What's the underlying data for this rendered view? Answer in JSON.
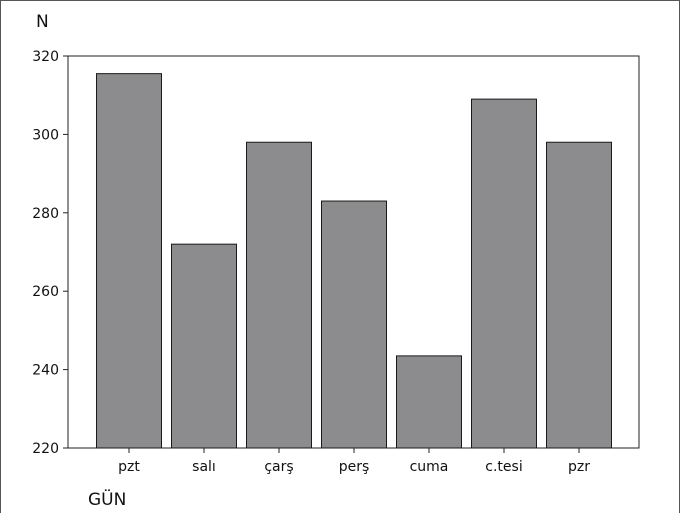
{
  "chart_data": {
    "type": "bar",
    "categories": [
      "pzt",
      "salı",
      "çarş",
      "perş",
      "cuma",
      "c.tesi",
      "pzr"
    ],
    "values": [
      315.5,
      272,
      298,
      283,
      243.5,
      309,
      298
    ],
    "xlabel": "GÜN",
    "ylabel": "N",
    "ylim": [
      220,
      320
    ],
    "yticks": [
      220,
      240,
      260,
      280,
      300,
      320
    ],
    "grid": false,
    "bar_color": "#8c8c8e",
    "bar_edge_color": "#1a1a1a"
  }
}
